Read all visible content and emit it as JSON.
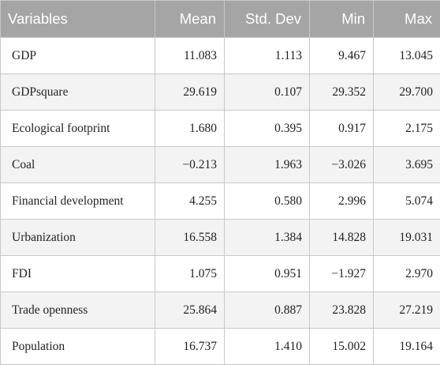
{
  "table": {
    "headers": [
      "Variables",
      "Mean",
      "Std. Dev",
      "Min",
      "Max"
    ],
    "rows": [
      [
        "GDP",
        "11.083",
        "1.113",
        "9.467",
        "13.045"
      ],
      [
        "GDPsquare",
        "29.619",
        "0.107",
        "29.352",
        "29.700"
      ],
      [
        "Ecological footprint",
        "1.680",
        "0.395",
        "0.917",
        "2.175"
      ],
      [
        "Coal",
        "−0.213",
        "1.963",
        "−3.026",
        "3.695"
      ],
      [
        "Financial development",
        "4.255",
        "0.580",
        "2.996",
        "5.074"
      ],
      [
        "Urbanization",
        "16.558",
        "1.384",
        "14.828",
        "19.031"
      ],
      [
        "FDI",
        "1.075",
        "0.951",
        "−1.927",
        "2.970"
      ],
      [
        "Trade openness",
        "25.864",
        "0.887",
        "23.828",
        "27.219"
      ],
      [
        "Population",
        "16.737",
        "1.410",
        "15.002",
        "19.164"
      ]
    ],
    "colors": {
      "header_bg": "#a5a5a5",
      "header_text": "#ffffff",
      "stripe_bg": "#f3f3f3",
      "border": "#c8c8c8"
    }
  }
}
